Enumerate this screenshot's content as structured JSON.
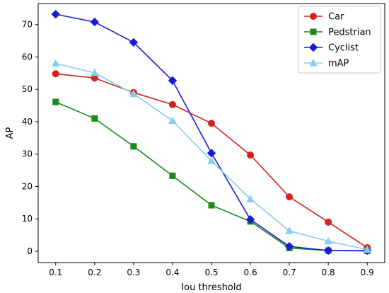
{
  "chart_data": {
    "type": "line",
    "title": "",
    "xlabel": "Iou threshold",
    "ylabel": "AP",
    "x": [
      0.1,
      0.2,
      0.3,
      0.4,
      0.5,
      0.6,
      0.7,
      0.8,
      0.9
    ],
    "x_tick_labels": [
      "0.1",
      "0.2",
      "0.3",
      "0.4",
      "0.5",
      "0.6",
      "0.7",
      "0.8",
      "0.9"
    ],
    "y_ticks": [
      0,
      10,
      20,
      30,
      40,
      50,
      60,
      70
    ],
    "y_tick_labels": [
      "0",
      "10",
      "20",
      "30",
      "40",
      "50",
      "60",
      "70"
    ],
    "xlim": [
      0.055,
      0.945
    ],
    "ylim": [
      -3.5,
      76.5
    ],
    "grid": false,
    "legend_position": "top-right",
    "series": [
      {
        "name": "Car",
        "color": "#d62020",
        "marker": "circle",
        "values": [
          54.8,
          53.5,
          49.0,
          45.3,
          39.5,
          29.7,
          16.8,
          9.0,
          1.1
        ]
      },
      {
        "name": "Pedstrian",
        "color": "#1a8a1a",
        "marker": "square",
        "values": [
          46.1,
          41.0,
          32.4,
          23.3,
          14.2,
          9.2,
          1.0,
          0.2,
          0.1
        ]
      },
      {
        "name": "Cyclist",
        "color": "#1a1ad9",
        "marker": "diamond",
        "values": [
          73.2,
          70.8,
          64.5,
          52.7,
          30.3,
          9.8,
          1.5,
          0.2,
          0.2
        ]
      },
      {
        "name": "mAP",
        "color": "#87ceeb",
        "marker": "triangle",
        "values": [
          58.0,
          55.1,
          48.6,
          40.3,
          27.9,
          16.1,
          6.3,
          3.1,
          0.5
        ]
      }
    ]
  }
}
